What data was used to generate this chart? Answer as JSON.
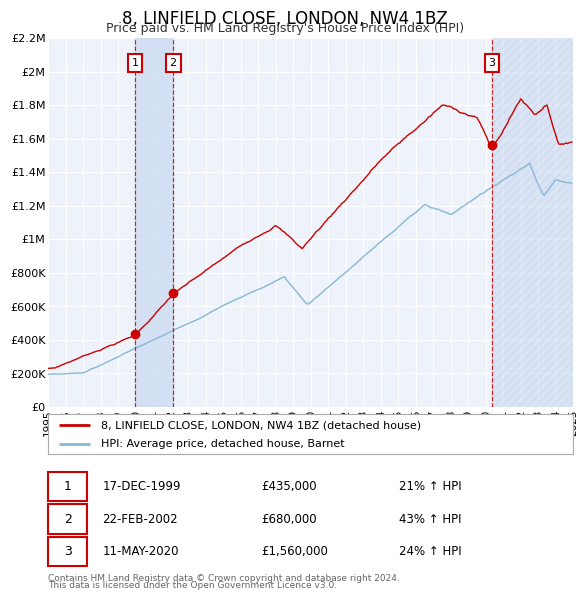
{
  "title": "8, LINFIELD CLOSE, LONDON, NW4 1BZ",
  "subtitle": "Price paid vs. HM Land Registry's House Price Index (HPI)",
  "background_color": "#ffffff",
  "plot_bg_color": "#eef2fa",
  "grid_color": "#ffffff",
  "red_line_color": "#cc0000",
  "blue_line_color": "#88b8d8",
  "sale_dates": [
    1999.96,
    2002.13,
    2020.36
  ],
  "sale_prices": [
    435000,
    680000,
    1560000
  ],
  "sale_labels": [
    "1",
    "2",
    "3"
  ],
  "sale_label1": "17-DEC-1999",
  "sale_price1": "£435,000",
  "sale_pct1": "21% ↑ HPI",
  "sale_label2": "22-FEB-2002",
  "sale_price2": "£680,000",
  "sale_pct2": "43% ↑ HPI",
  "sale_label3": "11-MAY-2020",
  "sale_price3": "£1,560,000",
  "sale_pct3": "24% ↑ HPI",
  "legend_label1": "8, LINFIELD CLOSE, LONDON, NW4 1BZ (detached house)",
  "legend_label2": "HPI: Average price, detached house, Barnet",
  "footer1": "Contains HM Land Registry data © Crown copyright and database right 2024.",
  "footer2": "This data is licensed under the Open Government Licence v3.0.",
  "ytick_labels": [
    "£0",
    "£200K",
    "£400K",
    "£600K",
    "£800K",
    "£1M",
    "£1.2M",
    "£1.4M",
    "£1.6M",
    "£1.8M",
    "£2M",
    "£2.2M"
  ],
  "ytick_values": [
    0,
    200000,
    400000,
    600000,
    800000,
    1000000,
    1200000,
    1400000,
    1600000,
    1800000,
    2000000,
    2200000
  ],
  "shade_color": "#c8d8f0",
  "shade_alpha": 0.5,
  "hatch_color": "#b0c8e8"
}
